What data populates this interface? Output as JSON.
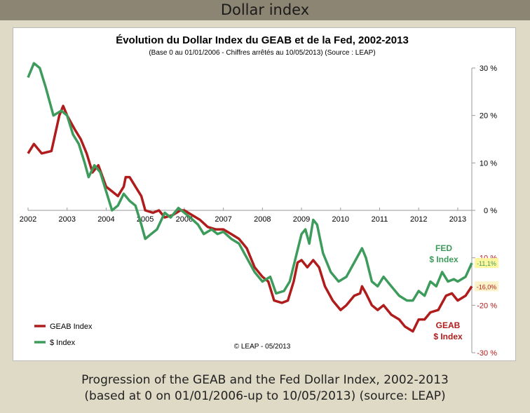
{
  "header": {
    "title": "Dollar index"
  },
  "chart_data": {
    "type": "line",
    "title": "Évolution du Dollar Index du GEAB et de la Fed, 2002-2013",
    "subtitle": "(Base 0 au 01/01/2006 - Chiffres arrêtés au 10/05/2013) (Source : LEAP)",
    "credit": "© LEAP - 05/2013",
    "annotations": [
      "FED",
      "$ Index",
      "GEAB",
      "$ Index"
    ],
    "xlim": [
      2002,
      2013.36
    ],
    "xticks": [
      2002,
      2003,
      2004,
      2005,
      2006,
      2007,
      2008,
      2009,
      2010,
      2011,
      2012,
      2013
    ],
    "ylim": [
      -30,
      30
    ],
    "yticks": [
      {
        "value": -30,
        "label": "-30 %"
      },
      {
        "value": -20,
        "label": "-20 %"
      },
      {
        "value": -10,
        "label": "-10 %"
      },
      {
        "value": 0,
        "label": "0 %"
      },
      {
        "value": 10,
        "label": "10 %"
      },
      {
        "value": 20,
        "label": "20 %"
      },
      {
        "value": 30,
        "label": "30 %"
      }
    ],
    "legend": "lower left",
    "series": [
      {
        "name": "GEAB Index",
        "color": "#b01c1c",
        "end_label": "-16,0%",
        "x": [
          2002.0,
          2002.15,
          2002.35,
          2002.6,
          2002.8,
          2002.9,
          2003.0,
          2003.2,
          2003.35,
          2003.5,
          2003.65,
          2003.8,
          2004.0,
          2004.15,
          2004.3,
          2004.45,
          2004.5,
          2004.6,
          2004.75,
          2004.9,
          2005.0,
          2005.2,
          2005.35,
          2005.5,
          2005.7,
          2005.9,
          2006.0,
          2006.2,
          2006.4,
          2006.6,
          2006.8,
          2007.0,
          2007.2,
          2007.4,
          2007.6,
          2007.8,
          2008.0,
          2008.15,
          2008.3,
          2008.5,
          2008.65,
          2008.8,
          2008.9,
          2009.0,
          2009.15,
          2009.3,
          2009.45,
          2009.6,
          2009.8,
          2010.0,
          2010.15,
          2010.35,
          2010.5,
          2010.55,
          2010.65,
          2010.8,
          2010.95,
          2011.1,
          2011.3,
          2011.5,
          2011.65,
          2011.85,
          2012.0,
          2012.15,
          2012.3,
          2012.5,
          2012.7,
          2012.85,
          2013.0,
          2013.2,
          2013.36
        ],
        "values": [
          12,
          14,
          12,
          12.5,
          20,
          22,
          20,
          17,
          15,
          12,
          8,
          9.5,
          5,
          4,
          3,
          5,
          7,
          7,
          5,
          3,
          0,
          -0.5,
          0,
          -1.5,
          -1,
          0,
          0,
          -1,
          -2,
          -3.5,
          -4,
          -4,
          -5,
          -6,
          -8,
          -12,
          -14,
          -15,
          -19,
          -19.5,
          -19,
          -15,
          -11,
          -10.5,
          -12,
          -10.5,
          -12,
          -16,
          -19,
          -21,
          -20,
          -18,
          -17.5,
          -16,
          -17.5,
          -20,
          -21,
          -20,
          -22,
          -23,
          -24.5,
          -25.5,
          -23,
          -23,
          -21.5,
          -21,
          -18,
          -17.5,
          -19,
          -18,
          -16.0
        ]
      },
      {
        "name": "$ Index",
        "color": "#3d9b5c",
        "end_label": "-11,1%",
        "x": [
          2002.0,
          2002.15,
          2002.3,
          2002.45,
          2002.65,
          2002.85,
          2003.0,
          2003.15,
          2003.3,
          2003.45,
          2003.55,
          2003.7,
          2003.85,
          2004.0,
          2004.15,
          2004.3,
          2004.45,
          2004.6,
          2004.75,
          2004.9,
          2005.0,
          2005.15,
          2005.3,
          2005.5,
          2005.65,
          2005.85,
          2006.0,
          2006.15,
          2006.35,
          2006.5,
          2006.7,
          2006.85,
          2007.0,
          2007.2,
          2007.4,
          2007.6,
          2007.8,
          2008.0,
          2008.2,
          2008.35,
          2008.55,
          2008.7,
          2008.85,
          2009.0,
          2009.1,
          2009.2,
          2009.3,
          2009.4,
          2009.55,
          2009.75,
          2009.95,
          2010.15,
          2010.35,
          2010.55,
          2010.65,
          2010.8,
          2010.95,
          2011.1,
          2011.3,
          2011.5,
          2011.7,
          2011.85,
          2012.0,
          2012.15,
          2012.3,
          2012.45,
          2012.6,
          2012.75,
          2012.9,
          2013.0,
          2013.2,
          2013.36
        ],
        "values": [
          28,
          31,
          30,
          26,
          20,
          21,
          20,
          16,
          14,
          10,
          7,
          9.5,
          8,
          4,
          0,
          1,
          3.5,
          2,
          1,
          -3,
          -6,
          -5,
          -4,
          -0.5,
          -1.5,
          0.5,
          -0.5,
          -1.5,
          -3,
          -5,
          -4,
          -5,
          -4.5,
          -6,
          -7,
          -10,
          -13,
          -15,
          -14,
          -17.5,
          -17,
          -15,
          -10,
          -5,
          -4,
          -7,
          -2,
          -3,
          -9,
          -13,
          -15,
          -14,
          -11,
          -8,
          -10,
          -15,
          -16,
          -14,
          -16,
          -18,
          -19,
          -19,
          -17,
          -18,
          -15,
          -16,
          -13,
          -15,
          -14.5,
          -15,
          -14,
          -11.1
        ]
      }
    ]
  },
  "caption": [
    "Progression of the GEAB and the Fed Dollar Index, 2002-2013",
    "(based at 0 on 01/01/2006-up to 10/05/2013) (source: LEAP)"
  ]
}
